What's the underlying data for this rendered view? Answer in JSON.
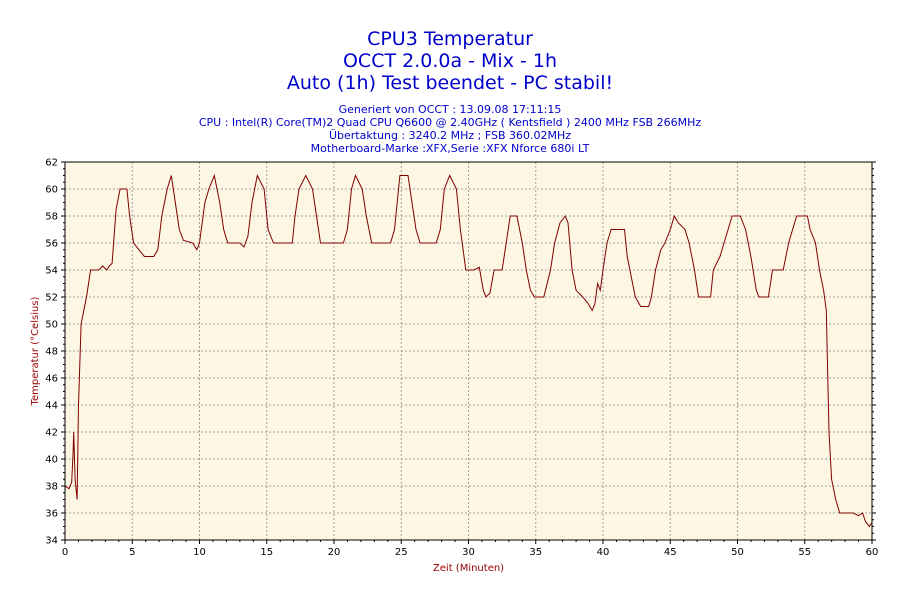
{
  "header": {
    "title_lines": [
      "CPU3 Temperatur",
      "OCCT 2.0.0a - Mix - 1h",
      "Auto (1h) Test beendet - PC stabil!"
    ],
    "info_lines": [
      "Generiert von OCCT : 13.09.08 17:11:15",
      "CPU : Intel(R) Core(TM)2 Quad CPU Q6600 @ 2.40GHz ( Kentsfield ) 2400 MHz FSB 266MHz",
      "Übertaktung : 3240.2 MHz ; FSB 360.02MHz",
      "Motherboard-Marke :XFX,Serie :XFX Nforce 680i LT"
    ]
  },
  "colors": {
    "title": "#0000cc",
    "plot_background": "#fdf6e3",
    "grid": "#a0a0a0",
    "series": "#800000",
    "axis_label": "#990000"
  },
  "chart_data": {
    "type": "line",
    "xlabel": "Zeit (Minuten)",
    "ylabel": "Temperatur (°Celsius)",
    "xlim": [
      0,
      60
    ],
    "ylim": [
      34,
      62
    ],
    "x_ticks": [
      0,
      5,
      10,
      15,
      20,
      25,
      30,
      35,
      40,
      45,
      50,
      55,
      60
    ],
    "y_ticks": [
      34,
      36,
      38,
      40,
      42,
      44,
      46,
      48,
      50,
      52,
      54,
      56,
      58,
      60,
      62
    ],
    "grid": true,
    "legend": "none",
    "series": [
      {
        "values": [
          [
            0,
            38
          ],
          [
            0.3,
            37.8
          ],
          [
            0.5,
            38.3
          ],
          [
            0.6,
            40.5
          ],
          [
            0.65,
            42
          ],
          [
            0.75,
            38.5
          ],
          [
            0.9,
            37
          ],
          [
            1.0,
            44
          ],
          [
            1.2,
            50
          ],
          [
            1.4,
            51
          ],
          [
            1.6,
            52
          ],
          [
            1.9,
            54
          ],
          [
            2.5,
            54
          ],
          [
            2.8,
            54.3
          ],
          [
            3.1,
            54
          ],
          [
            3.3,
            54.3
          ],
          [
            3.5,
            54.5
          ],
          [
            3.8,
            58.5
          ],
          [
            4.1,
            60
          ],
          [
            4.6,
            60
          ],
          [
            4.8,
            58
          ],
          [
            5.1,
            56
          ],
          [
            5.5,
            55.5
          ],
          [
            5.9,
            55
          ],
          [
            6.6,
            55
          ],
          [
            6.9,
            55.5
          ],
          [
            7.2,
            58
          ],
          [
            7.6,
            60
          ],
          [
            7.9,
            61
          ],
          [
            8.2,
            59
          ],
          [
            8.5,
            57
          ],
          [
            8.8,
            56.2
          ],
          [
            9.5,
            56
          ],
          [
            9.8,
            55.5
          ],
          [
            10.0,
            56
          ],
          [
            10.4,
            59
          ],
          [
            10.7,
            60
          ],
          [
            11.1,
            61
          ],
          [
            11.5,
            59
          ],
          [
            11.8,
            57
          ],
          [
            12.1,
            56
          ],
          [
            13.0,
            56
          ],
          [
            13.3,
            55.7
          ],
          [
            13.6,
            56.5
          ],
          [
            13.9,
            59
          ],
          [
            14.3,
            61
          ],
          [
            14.8,
            60
          ],
          [
            15.1,
            57
          ],
          [
            15.5,
            56
          ],
          [
            16.9,
            56
          ],
          [
            17.1,
            58
          ],
          [
            17.4,
            60
          ],
          [
            17.9,
            61
          ],
          [
            18.4,
            60
          ],
          [
            18.7,
            58
          ],
          [
            19.0,
            56
          ],
          [
            20.7,
            56
          ],
          [
            21.0,
            57
          ],
          [
            21.3,
            60
          ],
          [
            21.6,
            61
          ],
          [
            22.1,
            60
          ],
          [
            22.4,
            58
          ],
          [
            22.8,
            56
          ],
          [
            24.2,
            56
          ],
          [
            24.5,
            57
          ],
          [
            24.9,
            61
          ],
          [
            25.5,
            61
          ],
          [
            25.8,
            59
          ],
          [
            26.1,
            57
          ],
          [
            26.4,
            56
          ],
          [
            27.6,
            56
          ],
          [
            27.9,
            57
          ],
          [
            28.2,
            60
          ],
          [
            28.6,
            61
          ],
          [
            29.1,
            60
          ],
          [
            29.4,
            57
          ],
          [
            29.8,
            54
          ],
          [
            30.4,
            54
          ],
          [
            30.8,
            54.2
          ],
          [
            31.1,
            52.5
          ],
          [
            31.3,
            52
          ],
          [
            31.6,
            52.3
          ],
          [
            31.9,
            54
          ],
          [
            32.5,
            54
          ],
          [
            32.8,
            56
          ],
          [
            33.1,
            58
          ],
          [
            33.6,
            58
          ],
          [
            34.0,
            56
          ],
          [
            34.3,
            54
          ],
          [
            34.6,
            52.5
          ],
          [
            34.9,
            52
          ],
          [
            35.6,
            52
          ],
          [
            36.1,
            54
          ],
          [
            36.4,
            56
          ],
          [
            36.8,
            57.5
          ],
          [
            37.2,
            58
          ],
          [
            37.4,
            57.5
          ],
          [
            37.7,
            54
          ],
          [
            38.0,
            52.5
          ],
          [
            38.5,
            52
          ],
          [
            38.9,
            51.5
          ],
          [
            39.2,
            51
          ],
          [
            39.4,
            51.5
          ],
          [
            39.6,
            53
          ],
          [
            39.8,
            52.5
          ],
          [
            40.0,
            54
          ],
          [
            40.3,
            56
          ],
          [
            40.6,
            57
          ],
          [
            41.6,
            57
          ],
          [
            41.8,
            55
          ],
          [
            42.2,
            53
          ],
          [
            42.4,
            52
          ],
          [
            42.8,
            51.3
          ],
          [
            43.4,
            51.3
          ],
          [
            43.6,
            52
          ],
          [
            43.9,
            54
          ],
          [
            44.3,
            55.5
          ],
          [
            44.6,
            56
          ],
          [
            45.0,
            57
          ],
          [
            45.3,
            58
          ],
          [
            45.6,
            57.5
          ],
          [
            46.1,
            57
          ],
          [
            46.4,
            56
          ],
          [
            46.8,
            54
          ],
          [
            47.1,
            52
          ],
          [
            48.0,
            52
          ],
          [
            48.2,
            54
          ],
          [
            48.7,
            55
          ],
          [
            49.0,
            56
          ],
          [
            49.3,
            57
          ],
          [
            49.6,
            58
          ],
          [
            50.2,
            58
          ],
          [
            50.6,
            57
          ],
          [
            51.0,
            55
          ],
          [
            51.4,
            52.5
          ],
          [
            51.6,
            52
          ],
          [
            52.3,
            52
          ],
          [
            52.6,
            54
          ],
          [
            53.4,
            54
          ],
          [
            53.8,
            56
          ],
          [
            54.1,
            57
          ],
          [
            54.4,
            58
          ],
          [
            55.2,
            58
          ],
          [
            55.4,
            57
          ],
          [
            55.8,
            56
          ],
          [
            56.1,
            54
          ],
          [
            56.4,
            52.5
          ],
          [
            56.6,
            51
          ],
          [
            56.8,
            42
          ],
          [
            57.0,
            38.5
          ],
          [
            57.3,
            37
          ],
          [
            57.6,
            36
          ],
          [
            58.6,
            36
          ],
          [
            59.0,
            35.8
          ],
          [
            59.3,
            36
          ],
          [
            59.5,
            35.4
          ],
          [
            59.8,
            35
          ],
          [
            60.0,
            35.3
          ]
        ]
      }
    ]
  }
}
